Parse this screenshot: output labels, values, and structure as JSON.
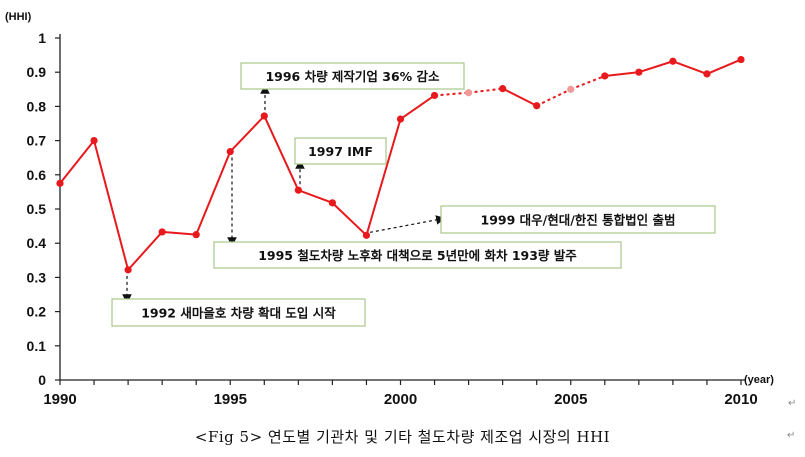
{
  "chart_data": {
    "type": "line",
    "ylabel": "(HHI)",
    "xlabel": "(year)",
    "ylim": [
      0,
      1
    ],
    "xlim": [
      1990,
      2010
    ],
    "yticks": [
      "0",
      "0.1",
      "0.2",
      "0.3",
      "0.4",
      "0.5",
      "0.6",
      "0.7",
      "0.8",
      "0.9",
      "1"
    ],
    "xticks": [
      "1990",
      "1995",
      "2000",
      "2005",
      "2010"
    ],
    "grid": false,
    "series": [
      {
        "color": "#e8191c",
        "x": [
          1990,
          1991,
          1992,
          1993,
          1994,
          1995,
          1996,
          1997,
          1998,
          1999,
          2000,
          2001,
          2002,
          2003,
          2004,
          2005,
          2006,
          2007,
          2008,
          2009,
          2010
        ],
        "y": [
          0.575,
          0.7,
          0.322,
          0.433,
          0.425,
          0.668,
          0.772,
          0.555,
          0.518,
          0.423,
          0.763,
          0.832,
          0.84,
          0.852,
          0.802,
          0.85,
          0.889,
          0.9,
          0.932,
          0.895,
          0.937
        ],
        "estimated": [
          false,
          false,
          false,
          false,
          false,
          false,
          false,
          false,
          false,
          false,
          false,
          false,
          true,
          false,
          false,
          true,
          false,
          false,
          false,
          false,
          false
        ]
      }
    ],
    "annotations": [
      {
        "text": "1992 새마을호 차량 확대 도입 시작",
        "x": 1992,
        "y": 0.322,
        "direction": "down"
      },
      {
        "text": "1995 철도차량 노후화 대책으로 5년만에 화차 193량 발주",
        "x": 1995,
        "y": 0.668,
        "direction": "down"
      },
      {
        "text": "1996 차량 제작기업 36% 감소",
        "x": 1996,
        "y": 0.772,
        "direction": "up"
      },
      {
        "text": "1997  IMF",
        "x": 1997,
        "y": 0.555,
        "direction": "up"
      },
      {
        "text": "1999 대우/현대/한진 통합법인 출범",
        "x": 1999,
        "y": 0.423,
        "direction": "right"
      }
    ]
  },
  "caption": "<Fig 5> 연도별 기관차 및 기타 철도차량 제조업 시장의 HHI"
}
